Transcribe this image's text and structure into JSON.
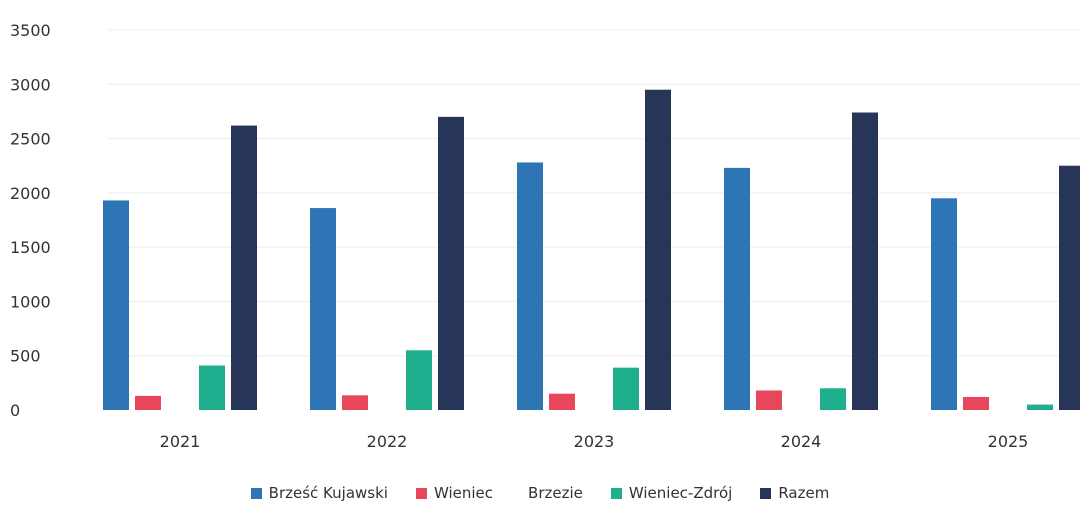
{
  "chart_data": {
    "type": "bar",
    "categories": [
      "2021",
      "2022",
      "2023",
      "2024",
      "2025"
    ],
    "ylim": [
      0,
      3500
    ],
    "yticks": [
      0,
      500,
      1000,
      1500,
      2000,
      2500,
      3000,
      3500
    ],
    "ytick_labels": [
      "0",
      "500",
      "1000",
      "1500",
      "2000",
      "2500",
      "3000",
      "3500"
    ],
    "grid": true,
    "legend_position": "bottom",
    "series": [
      {
        "name": "Brześć Kujawski",
        "color": "#2E75B6",
        "values": [
          1930,
          1860,
          2280,
          2230,
          1950
        ]
      },
      {
        "name": "Wieniec",
        "color": "#E8465A",
        "values": [
          130,
          135,
          150,
          180,
          120
        ]
      },
      {
        "name": "Brzezie",
        "color": "#A5A5A5",
        "values": [
          0,
          0,
          0,
          0,
          0
        ]
      },
      {
        "name": "Wieniec-Zdrój",
        "color": "#1FAF8E",
        "values": [
          410,
          550,
          390,
          200,
          50
        ]
      },
      {
        "name": "Razem",
        "color": "#263558",
        "values": [
          2620,
          2700,
          2950,
          2740,
          2250
        ]
      }
    ]
  }
}
